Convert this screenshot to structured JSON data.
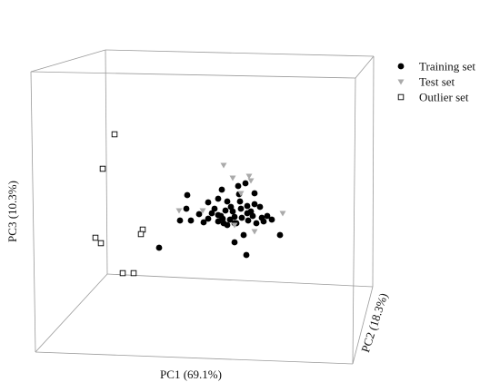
{
  "chart_data": {
    "type": "scatter",
    "projection": "3d",
    "axes": {
      "x": {
        "label": "PC1 (69.1%)"
      },
      "y": {
        "label": "PC2 (18.3%)"
      },
      "z": {
        "label": "PC3 (10.3%)"
      }
    },
    "legend": {
      "placement": "top-right"
    },
    "series": [
      {
        "name": "Training set",
        "marker": "circle-filled",
        "color": "#000000",
        "points": [
          [
            175,
            273
          ],
          [
            206,
            215
          ],
          [
            198,
            243
          ],
          [
            205,
            230
          ],
          [
            210,
            243
          ],
          [
            219,
            236
          ],
          [
            224,
            245
          ],
          [
            229,
            241
          ],
          [
            229,
            223
          ],
          [
            233,
            235
          ],
          [
            236,
            230
          ],
          [
            240,
            219
          ],
          [
            240,
            244
          ],
          [
            243,
            238
          ],
          [
            245,
            241
          ],
          [
            246,
            246
          ],
          [
            248,
            232
          ],
          [
            244,
            209
          ],
          [
            250,
            222
          ],
          [
            254,
            228
          ],
          [
            256,
            233
          ],
          [
            258,
            239
          ],
          [
            260,
            246
          ],
          [
            263,
            214
          ],
          [
            264,
            222
          ],
          [
            265,
            230
          ],
          [
            266,
            240
          ],
          [
            258,
            246
          ],
          [
            270,
            202
          ],
          [
            272,
            227
          ],
          [
            272,
            235
          ],
          [
            273,
            243
          ],
          [
            276,
            233
          ],
          [
            278,
            238
          ],
          [
            280,
            213
          ],
          [
            280,
            225
          ],
          [
            282,
            246
          ],
          [
            286,
            228
          ],
          [
            288,
            240
          ],
          [
            290,
            244
          ],
          [
            294,
            238
          ],
          [
            299,
            242
          ],
          [
            308,
            259
          ],
          [
            258,
            267
          ],
          [
            271,
            281
          ],
          [
            268,
            259
          ],
          [
            253,
            242
          ],
          [
            262,
            205
          ],
          [
            250,
            248
          ],
          [
            240,
            237
          ]
        ]
      },
      {
        "name": "Test set",
        "marker": "triangle-down",
        "color": "#aaaaaa",
        "points": [
          [
            246,
            182
          ],
          [
            256,
            196
          ],
          [
            274,
            194
          ],
          [
            276,
            199
          ],
          [
            223,
            232
          ],
          [
            311,
            235
          ],
          [
            280,
            255
          ],
          [
            197,
            232
          ],
          [
            258,
            248
          ],
          [
            265,
            213
          ]
        ]
      },
      {
        "name": "Outlier set",
        "marker": "square-open",
        "color": "#000000",
        "points": [
          [
            126,
            148
          ],
          [
            113,
            186
          ],
          [
            157,
            253
          ],
          [
            155,
            258
          ],
          [
            105,
            262
          ],
          [
            111,
            268
          ],
          [
            135,
            301
          ],
          [
            147,
            301
          ]
        ]
      }
    ]
  }
}
